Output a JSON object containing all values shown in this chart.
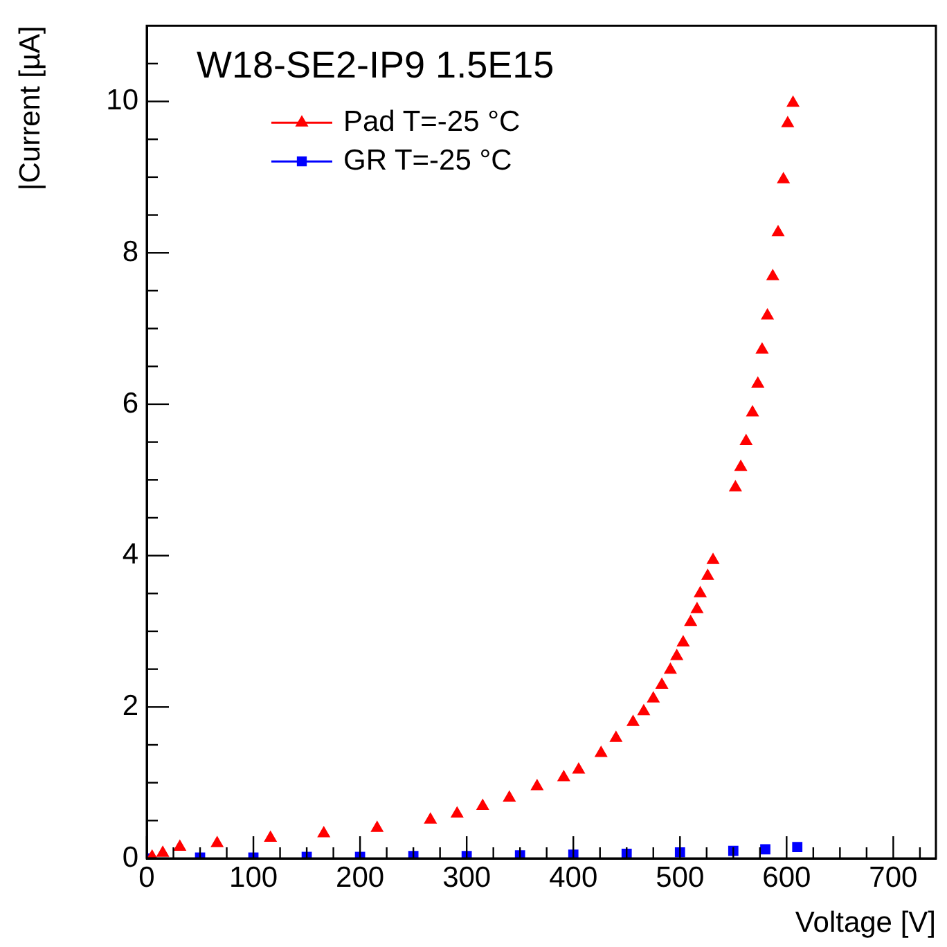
{
  "chart_data": {
    "type": "scatter",
    "title": "W18-SE2-IP9 1.5E15",
    "xlabel": "Voltage [V]",
    "ylabel": "|Current [µA]",
    "xlim": [
      0,
      740
    ],
    "ylim": [
      0,
      11
    ],
    "xticks": [
      0,
      {
        "value": 25,
        "label": null
      },
      {
        "value": 50,
        "label": null
      },
      {
        "value": 75,
        "label": null
      },
      100,
      {
        "value": 125,
        "label": null
      },
      {
        "value": 150,
        "label": null
      },
      {
        "value": 175,
        "label": null
      },
      200,
      {
        "value": 225,
        "label": null
      },
      {
        "value": 250,
        "label": null
      },
      {
        "value": 275,
        "label": null
      },
      300,
      {
        "value": 325,
        "label": null
      },
      {
        "value": 350,
        "label": null
      },
      {
        "value": 375,
        "label": null
      },
      400,
      {
        "value": 425,
        "label": null
      },
      {
        "value": 450,
        "label": null
      },
      {
        "value": 475,
        "label": null
      },
      500,
      {
        "value": 525,
        "label": null
      },
      {
        "value": 550,
        "label": null
      },
      {
        "value": 575,
        "label": null
      },
      600,
      {
        "value": 625,
        "label": null
      },
      {
        "value": 650,
        "label": null
      },
      {
        "value": 675,
        "label": null
      },
      700,
      {
        "value": 725,
        "label": null
      }
    ],
    "yticks": [
      0,
      {
        "value": 0.5,
        "label": null
      },
      {
        "value": 1,
        "label": null
      },
      {
        "value": 1.5,
        "label": null
      },
      2,
      {
        "value": 2.5,
        "label": null
      },
      {
        "value": 3,
        "label": null
      },
      {
        "value": 3.5,
        "label": null
      },
      4,
      {
        "value": 4.5,
        "label": null
      },
      {
        "value": 5,
        "label": null
      },
      {
        "value": 5.5,
        "label": null
      },
      6,
      {
        "value": 6.5,
        "label": null
      },
      {
        "value": 7,
        "label": null
      },
      {
        "value": 7.5,
        "label": null
      },
      8,
      {
        "value": 8.5,
        "label": null
      },
      {
        "value": 9,
        "label": null
      },
      {
        "value": 9.5,
        "label": null
      },
      10,
      {
        "value": 10.5,
        "label": null
      }
    ],
    "grid": false,
    "legend": "top left",
    "series": [
      {
        "name": "Pad T=-25 °C",
        "color": "#ff0000",
        "marker": "triangle",
        "x": [
          5,
          15,
          31,
          66,
          116,
          166,
          216,
          266,
          291,
          315,
          340,
          366,
          391,
          405,
          426,
          440,
          456,
          466,
          475,
          483,
          491,
          497,
          503,
          510,
          516,
          519,
          526,
          531,
          552,
          557,
          562,
          568,
          573,
          577,
          582,
          587,
          592,
          597,
          601,
          606
        ],
        "values": [
          0.02,
          0.07,
          0.15,
          0.2,
          0.27,
          0.33,
          0.4,
          0.51,
          0.59,
          0.69,
          0.8,
          0.95,
          1.07,
          1.17,
          1.39,
          1.59,
          1.8,
          1.94,
          2.11,
          2.29,
          2.49,
          2.67,
          2.85,
          3.12,
          3.29,
          3.5,
          3.73,
          3.94,
          4.9,
          5.17,
          5.51,
          5.89,
          6.27,
          6.72,
          7.17,
          7.69,
          8.27,
          8.97,
          9.71,
          9.98
        ]
      },
      {
        "name": "GR T=-25 °C",
        "color": "#0000ff",
        "marker": "square",
        "x": [
          0,
          50,
          100,
          150,
          200,
          250,
          300,
          350,
          400,
          450,
          500,
          550,
          580,
          610
        ],
        "values": [
          0,
          0.01,
          0.01,
          0.02,
          0.02,
          0.03,
          0.03,
          0.04,
          0.05,
          0.06,
          0.08,
          0.1,
          0.12,
          0.15
        ]
      }
    ]
  }
}
